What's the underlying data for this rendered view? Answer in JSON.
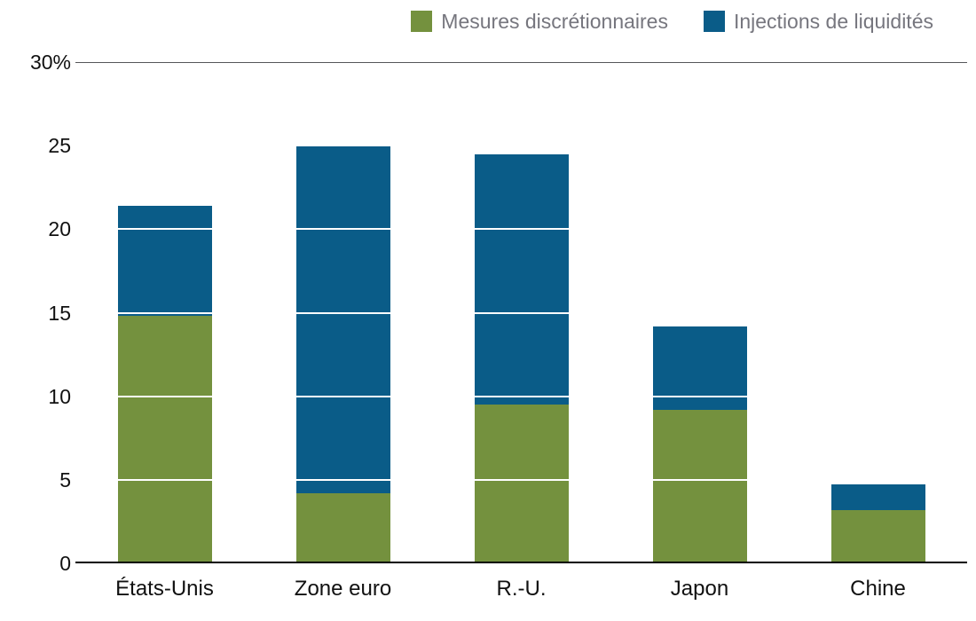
{
  "chart_data": {
    "type": "bar",
    "subtype": "stacked",
    "title": "",
    "categories": [
      "États-Unis",
      "Zone euro",
      "R.-U.",
      "Japon",
      "Chine"
    ],
    "series": [
      {
        "name": "Mesures discrétionnaires",
        "color": "#74913e",
        "values": [
          14.8,
          4.2,
          9.5,
          9.2,
          3.2
        ]
      },
      {
        "name": "Injections de liquidités",
        "color": "#0a5c88",
        "values": [
          6.6,
          20.8,
          15.0,
          5.0,
          1.5
        ]
      }
    ],
    "totals": [
      21.4,
      25.0,
      24.5,
      14.2,
      4.7
    ],
    "ylim": [
      0,
      30
    ],
    "yticks": [
      0,
      5,
      10,
      15,
      20,
      25,
      30
    ],
    "ytick_labels": [
      "0",
      "5",
      "10",
      "15",
      "20",
      "25",
      "30%"
    ],
    "xlabel": "",
    "ylabel": "",
    "grid": true,
    "gridline_color": "#ffffff",
    "legend_position": "top",
    "legend_text_color": "#76767e",
    "axis_color": "#000000"
  }
}
